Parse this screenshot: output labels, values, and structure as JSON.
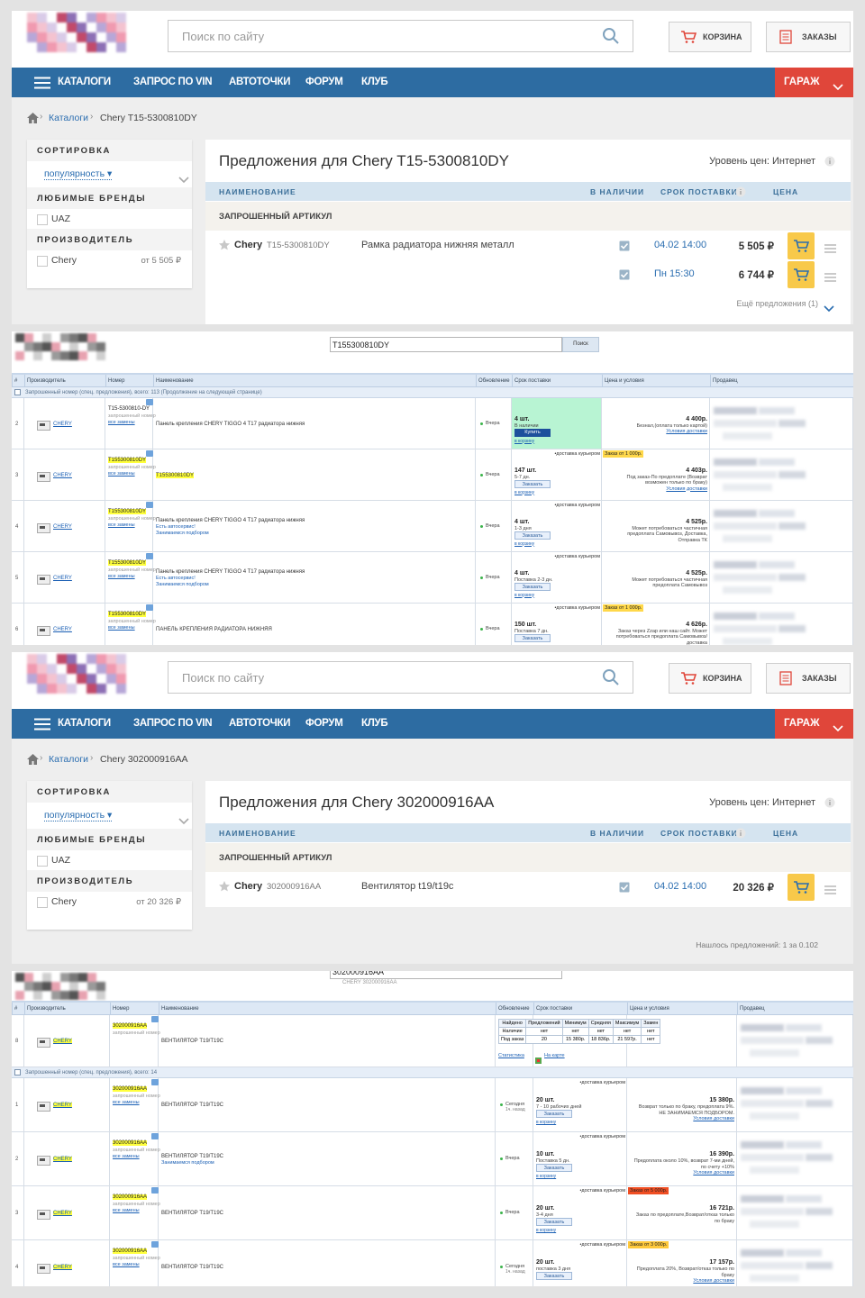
{
  "panels": [
    {
      "kind": "shop",
      "search_placeholder": "Поиск по сайту",
      "cart": "КОРЗИНА",
      "orders": "ЗАКАЗЫ",
      "nav": [
        "КАТАЛОГИ",
        "ЗАПРОС ПО VIN",
        "АВТОТОЧКИ",
        "ФОРУМ",
        "КЛУБ"
      ],
      "garage": "ГАРАЖ",
      "breadcrumb": [
        "Каталоги",
        "Chery T15-5300810DY"
      ],
      "sidebar": {
        "sort_title": "СОРТИРОВКА",
        "sort_value": "популярность ▾",
        "brands_title": "ЛЮБИМЫЕ БРЕНДЫ",
        "brands": [
          "UAZ"
        ],
        "makers_title": "ПРОИЗВОДИТЕЛЬ",
        "makers": [
          {
            "name": "Chery",
            "price": "от 5 505 ₽"
          }
        ]
      },
      "title": "Предложения для  Chery T15-5300810DY",
      "price_level": "Уровень цен: Интернет",
      "columns": [
        "НАИМЕНОВАНИЕ",
        "В НАЛИЧИИ",
        "СРОК ПОСТАВКИ",
        "ЦЕНА"
      ],
      "group": "ЗАПРОШЕННЫЙ АРТИКУЛ",
      "item": {
        "brand": "Chery",
        "article": "T15-5300810DY",
        "name": "Рамка радиатора нижняя металл"
      },
      "offers": [
        {
          "date": "04.02 14:00",
          "price": "5 505 ₽"
        },
        {
          "date": "Пн 15:30",
          "price": "6 744 ₽"
        }
      ],
      "more": "Ещё предложения (1)"
    },
    {
      "kind": "exist",
      "search": "T155300810DY",
      "search_button": "Поиск",
      "columns": [
        "#",
        "Производитель",
        "Номер",
        "Наименование",
        "Обновление",
        "Срок поставки",
        "Цена и условия",
        "Продавец"
      ],
      "groups": [
        {
          "title": "Запрошенный номер (спец. предложения), всего: 113",
          "note": "(Продолжение на следующей странице)",
          "rows": [
            {
              "num": "2",
              "maker": "CHERY",
              "number": "T15-5300810-DY",
              "number_note": "запрошенный номер",
              "replacements": "все замены",
              "name": "Панель крепления CHERY TIGGO 4 T17 радиатора нижняя",
              "updated": "Вчера",
              "in_stock": true,
              "qty": "4 шт.",
              "stock_info": "В наличии",
              "button": "Купить",
              "cart": "в корзину",
              "price": "4 400р.",
              "conditions": "Безнал,(оплата только картой)",
              "terms": "Условия доставки"
            },
            {
              "num": "3",
              "maker": "CHERY",
              "number": "T155300810DY",
              "highlight": true,
              "number_note": "запрошенный номер",
              "replacements": "все замены",
              "name": "T155300810DY",
              "name_highlight": true,
              "updated": "Вчера",
              "delivery": "•доставка курьером",
              "badge": "Заказ от 1 000р.",
              "badge_color": "#ffd84a",
              "qty": "147 шт.",
              "stock_info": "5-7 дн.",
              "button": "Заказать",
              "cart": "в корзину",
              "price": "4 403р.",
              "conditions": "Под заказ-По предоплате (Возврат возможен только по браку)",
              "terms": "Условия доставки"
            },
            {
              "num": "4",
              "maker": "CHERY",
              "number": "T155300810DY",
              "highlight": true,
              "number_note": "запрошенный номер",
              "replacements": "все замены",
              "name": "Панель крепления CHERY TIGGO 4 T17 радиатора нижняя",
              "name_extra": [
                "Есть автосервис!",
                "Занимаемся подбором"
              ],
              "updated": "Вчера",
              "delivery": "•доставка курьером",
              "qty": "4 шт.",
              "stock_info": "1-3 дня",
              "button": "Заказать",
              "cart": "в корзину",
              "price": "4 525р.",
              "conditions": "Может потребоваться частичная предоплата Самовывоз, Доставка, Отправка ТК"
            },
            {
              "num": "5",
              "maker": "CHERY",
              "number": "T155300810DY",
              "highlight": true,
              "number_note": "запрошенный номер",
              "replacements": "все замены",
              "name": "Панель крепления CHERY TIGGO 4 T17 радиатора нижняя",
              "name_extra": [
                "Есть автосервис!",
                "Занимаемся подбором"
              ],
              "updated": "Вчера",
              "delivery": "•доставка курьером",
              "qty": "4 шт.",
              "stock_info": "Поставка 2-3 дн.",
              "button": "Заказать",
              "cart": "в корзину",
              "price": "4 525р.",
              "conditions": "Может потребоваться частичная предоплата Самовывоз"
            },
            {
              "num": "6",
              "maker": "CHERY",
              "number": "T155300810DY",
              "highlight": true,
              "number_note": "запрошенный номер",
              "replacements": "все замены",
              "name": "ПАНЕЛЬ КРЕПЛЕНИЯ РАДИАТОРА НИЖНЯЯ",
              "updated": "Вчера",
              "delivery": "•доставка курьером",
              "badge": "Заказ от 1 000р.",
              "badge_color": "#ffd84a",
              "qty": "150 шт.",
              "stock_info": "Поставка 7 дн.",
              "button": "Заказать",
              "price": "4 626р.",
              "conditions": "Заказ через Zzap или наш сайт. Может потребоваться предоплата Самовывоз/доставка"
            }
          ]
        }
      ]
    },
    {
      "kind": "shop",
      "search_placeholder": "Поиск по сайту",
      "cart": "КОРЗИНА",
      "orders": "ЗАКАЗЫ",
      "nav": [
        "КАТАЛОГИ",
        "ЗАПРОС ПО VIN",
        "АВТОТОЧКИ",
        "ФОРУМ",
        "КЛУБ"
      ],
      "garage": "ГАРАЖ",
      "breadcrumb": [
        "Каталоги",
        "Chery 302000916AA"
      ],
      "sidebar": {
        "sort_title": "СОРТИРОВКА",
        "sort_value": "популярность ▾",
        "brands_title": "ЛЮБИМЫЕ БРЕНДЫ",
        "brands": [
          "UAZ"
        ],
        "makers_title": "ПРОИЗВОДИТЕЛЬ",
        "makers": [
          {
            "name": "Chery",
            "price": "от 20 326 ₽"
          }
        ]
      },
      "title": "Предложения для  Chery 302000916AA",
      "price_level": "Уровень цен: Интернет",
      "columns": [
        "НАИМЕНОВАНИЕ",
        "В НАЛИЧИИ",
        "СРОК ПОСТАВКИ",
        "ЦЕНА"
      ],
      "group": "ЗАПРОШЕННЫЙ АРТИКУЛ",
      "item": {
        "brand": "Chery",
        "article": "302000916AA",
        "name": "Вентилятор t19/t19c"
      },
      "offers": [
        {
          "date": "04.02 14:00",
          "price": "20 326 ₽"
        }
      ],
      "found": "Нашлось предложений: 1 за 0.102"
    },
    {
      "kind": "exist",
      "search": "302000916AA",
      "search_hint": "CHERY   302000916AA",
      "maker_highlight": true,
      "columns": [
        "#",
        "Производитель",
        "Номер",
        "Наименование",
        "Обновление",
        "Срок поставки",
        "Цена и условия",
        "Продавец"
      ],
      "groups": [
        {
          "rows": [
            {
              "num": "8",
              "maker": "CHERY",
              "number": "302000916AA",
              "highlight": true,
              "number_note": "запрошенный номер",
              "name": "ВЕНТИЛЯТОР T19/T19C",
              "stats": {
                "headers": [
                  "Найдено",
                  "Предложений",
                  "Минимум",
                  "Средняя",
                  "Максимум",
                  "Замен"
                ],
                "rows": [
                  [
                    "Наличие",
                    "нет",
                    "нет",
                    "нет",
                    "нет",
                    "нет"
                  ],
                  [
                    "Под заказ",
                    "20",
                    "15 380р.",
                    "18 836р.",
                    "21 597р.",
                    "нет"
                  ]
                ],
                "links": [
                  "Статистика",
                  "На карте"
                ]
              }
            }
          ]
        },
        {
          "title": "Запрошенный номер (спец. предложения), всего: 14",
          "rows": [
            {
              "num": "1",
              "maker": "CHERY",
              "number": "302000916AA",
              "highlight": true,
              "number_note": "запрошенный номер",
              "replacements": "все замены",
              "name": "ВЕНТИЛЯТОР T19/T19C",
              "updated": "Сегодня",
              "updated_note": "1ч. назад",
              "delivery": "•доставка курьером",
              "qty": "20 шт.",
              "stock_info": "7 - 10 рабочих дней",
              "button": "Заказать",
              "cart": "в корзину",
              "price": "15 380р.",
              "conditions": "Возврат только по браку, предоплата 9%. НЕ ЗАНИМАЕМСЯ ПОДБОРОМ.",
              "terms": "Условия доставки"
            },
            {
              "num": "2",
              "maker": "CHERY",
              "number": "302000916AA",
              "highlight": true,
              "number_note": "запрошенный номер",
              "replacements": "все замены",
              "name": "ВЕНТИЛЯТОР T19/T19C",
              "name_extra": [
                "Занимаемся подбором"
              ],
              "updated": "Вчера",
              "delivery": "•доставка курьером",
              "qty": "10 шт.",
              "stock_info": "Поставка 5 дн.",
              "button": "Заказать",
              "cart": "в корзину",
              "price": "16 390р.",
              "conditions": "Предоплата около 10%, возврат 7-ми дней, по счету +10%",
              "terms": "Условия доставки"
            },
            {
              "num": "3",
              "maker": "CHERY",
              "number": "302000916AA",
              "highlight": true,
              "number_note": "запрошенный номер",
              "replacements": "все замены",
              "name": "ВЕНТИЛЯТОР T19/T19C",
              "updated": "Вчера",
              "delivery": "•доставка курьером",
              "badge": "Заказ от 5 000р.",
              "badge_color": "#f04e23",
              "qty": "20 шт.",
              "stock_info": "3-4 дня",
              "button": "Заказать",
              "cart": "в корзину",
              "price": "16 721р.",
              "conditions": "Заказ по предоплате,Возврат/отказ только по браку"
            },
            {
              "num": "4",
              "maker": "CHERY",
              "number": "302000916AA",
              "highlight": true,
              "number_note": "запрошенный номер",
              "replacements": "все замены",
              "name": "ВЕНТИЛЯТОР T19/T19C",
              "updated": "Сегодня",
              "updated_note": "1ч. назад",
              "delivery": "•доставка курьером",
              "badge": "Заказ от 3 000р.",
              "badge_color": "#ffc93c",
              "qty": "20 шт.",
              "stock_info": "поставка 3 дня",
              "button": "Заказать",
              "price": "17 157р.",
              "conditions": "Предоплата 20%, Возврат/отказ только по браку",
              "terms": "Условия доставки"
            }
          ]
        }
      ]
    }
  ]
}
